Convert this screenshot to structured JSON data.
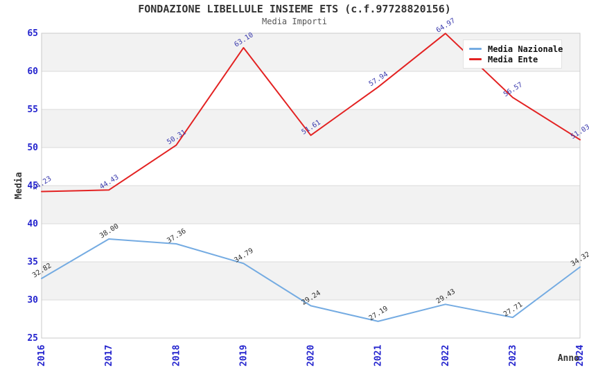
{
  "header": {
    "title": "FONDAZIONE LIBELLULE INSIEME ETS (c.f.97728820156)",
    "subtitle": "Media Importi"
  },
  "legend": {
    "items": [
      {
        "label": "Media Nazionale",
        "color": "#74ABE2"
      },
      {
        "label": "Media Ente",
        "color": "#E32222"
      }
    ]
  },
  "chart_data": {
    "type": "line",
    "title": "FONDAZIONE LIBELLULE INSIEME ETS (c.f.97728820156)",
    "subtitle": "Media Importi",
    "categories": [
      "2016",
      "2017",
      "2018",
      "2019",
      "2020",
      "2021",
      "2022",
      "2023",
      "2024"
    ],
    "series": [
      {
        "name": "Media Nazionale",
        "color": "#74ABE2",
        "label_color": "#2E2E2E",
        "values": [
          32.82,
          38.0,
          37.36,
          34.79,
          29.24,
          27.19,
          29.43,
          27.71,
          34.32
        ],
        "labels": [
          "32.82",
          "38.00",
          "37.36",
          "34.79",
          "29.24",
          "27.19",
          "29.43",
          "27.71",
          "34.32"
        ]
      },
      {
        "name": "Media Ente",
        "color": "#E32222",
        "label_color": "#3A3AAD",
        "values": [
          44.23,
          44.43,
          50.31,
          63.1,
          51.61,
          57.94,
          64.97,
          56.57,
          51.03
        ],
        "labels": [
          "44.23",
          "44.43",
          "50.31",
          "63.10",
          "51.61",
          "57.94",
          "64.97",
          "56.57",
          "51.03"
        ]
      }
    ],
    "xlabel": "Anno",
    "ylabel": "Media",
    "ylim": [
      25,
      65
    ],
    "ytick_step": 5,
    "y_ticks": [
      "25",
      "30",
      "35",
      "40",
      "45",
      "50",
      "55",
      "60",
      "65"
    ],
    "grid": true,
    "legend_position": "top-right",
    "style": {
      "tick_label_color": "#2424CE",
      "axis_title_color": "#333333",
      "band_color": "#F2F2F2",
      "grid_color": "#DBDBDB",
      "frame_color": "#C9C9C9",
      "series_label_rotation_deg": -32,
      "x_tick_rotation_deg": -90
    }
  }
}
